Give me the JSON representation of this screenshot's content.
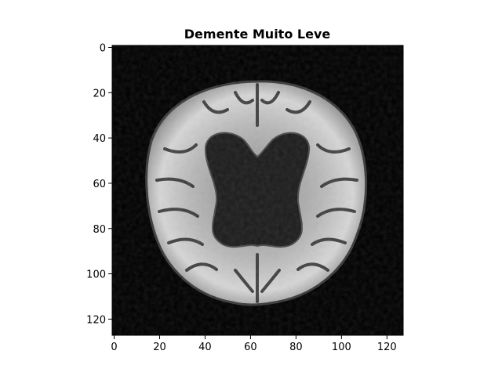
{
  "title": "Demente Muito Leve",
  "image": {
    "description_icon": "brain-mri-axial-slice-icon",
    "colormap": "gray",
    "background_color": "#000000",
    "x_range": [
      0,
      128
    ],
    "y_range": [
      0,
      128
    ],
    "y_inverted": true
  },
  "axes": {
    "x_ticks": [
      0,
      20,
      40,
      60,
      80,
      100,
      120
    ],
    "y_ticks": [
      0,
      20,
      40,
      60,
      80,
      100,
      120
    ],
    "grid": false
  }
}
